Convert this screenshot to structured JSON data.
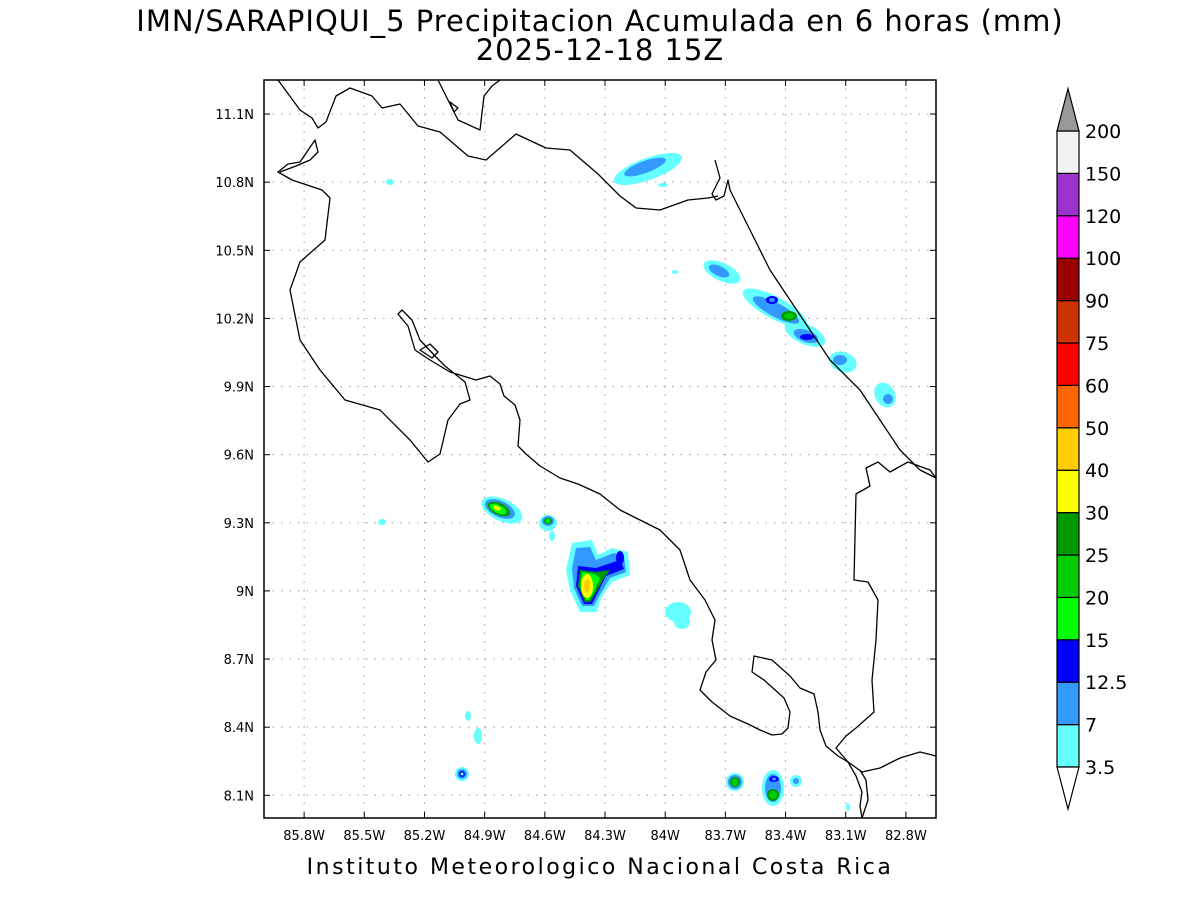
{
  "title": {
    "line1": "IMN/SARAPIQUI_5 Precipitacion Acumulada en 6 horas (mm)",
    "line2": "2025-12-18 15Z"
  },
  "footer": "Instituto Meteorologico Nacional Costa Rica",
  "map": {
    "lon_range": [
      -86.0,
      -82.65
    ],
    "lat_range": [
      8.0,
      11.25
    ],
    "lon_ticks": [
      {
        "value": -85.8,
        "label": "85.8W"
      },
      {
        "value": -85.5,
        "label": "85.5W"
      },
      {
        "value": -85.2,
        "label": "85.2W"
      },
      {
        "value": -84.9,
        "label": "84.9W"
      },
      {
        "value": -84.6,
        "label": "84.6W"
      },
      {
        "value": -84.3,
        "label": "84.3W"
      },
      {
        "value": -84.0,
        "label": "84W"
      },
      {
        "value": -83.7,
        "label": "83.7W"
      },
      {
        "value": -83.4,
        "label": "83.4W"
      },
      {
        "value": -83.1,
        "label": "83.1W"
      },
      {
        "value": -82.8,
        "label": "82.8W"
      }
    ],
    "lat_ticks": [
      {
        "value": 11.1,
        "label": "11.1N"
      },
      {
        "value": 10.8,
        "label": "10.8N"
      },
      {
        "value": 10.5,
        "label": "10.5N"
      },
      {
        "value": 10.2,
        "label": "10.2N"
      },
      {
        "value": 9.9,
        "label": "9.9N"
      },
      {
        "value": 9.6,
        "label": "9.6N"
      },
      {
        "value": 9.3,
        "label": "9.3N"
      },
      {
        "value": 9.0,
        "label": "9N"
      },
      {
        "value": 8.7,
        "label": "8.7N"
      },
      {
        "value": 8.4,
        "label": "8.4N"
      },
      {
        "value": 8.1,
        "label": "8.1N"
      }
    ],
    "grid": true
  },
  "colorbar": {
    "levels": [
      {
        "label": "3.5",
        "color": "#66ffff"
      },
      {
        "label": "7",
        "color": "#3399ff"
      },
      {
        "label": "12.5",
        "color": "#0000ff"
      },
      {
        "label": "15",
        "color": "#00ff00"
      },
      {
        "label": "20",
        "color": "#00cc00"
      },
      {
        "label": "25",
        "color": "#009900"
      },
      {
        "label": "30",
        "color": "#ffff00"
      },
      {
        "label": "40",
        "color": "#ffcc00"
      },
      {
        "label": "50",
        "color": "#ff6600"
      },
      {
        "label": "60",
        "color": "#ff0000"
      },
      {
        "label": "75",
        "color": "#cc3300"
      },
      {
        "label": "90",
        "color": "#990000"
      },
      {
        "label": "100",
        "color": "#ff00ff"
      },
      {
        "label": "120",
        "color": "#9933cc"
      },
      {
        "label": "150",
        "color": "#f2f2f2"
      },
      {
        "label": "200",
        "color": "#999999"
      }
    ]
  },
  "precip_cells": [
    {
      "lon": -83.93,
      "lat": 10.92,
      "rx": 0.12,
      "ry": 0.03,
      "rot": -20,
      "level": 7
    },
    {
      "lon": -84.42,
      "lat": 9.0,
      "rx": 0.06,
      "ry": 0.08,
      "rot": 0,
      "level": 40
    },
    {
      "lon": -84.22,
      "lat": 9.15,
      "rx": 0.03,
      "ry": 0.02,
      "rot": 0,
      "level": 12.5
    },
    {
      "lon": -84.74,
      "lat": 9.37,
      "rx": 0.05,
      "ry": 0.03,
      "rot": 25,
      "level": 30
    },
    {
      "lon": -84.52,
      "lat": 9.32,
      "rx": 0.02,
      "ry": 0.015,
      "rot": 0,
      "level": 20
    },
    {
      "lon": -83.36,
      "lat": 10.32,
      "rx": 0.03,
      "ry": 0.02,
      "rot": 0,
      "level": 12.5
    },
    {
      "lon": -83.28,
      "lat": 10.24,
      "rx": 0.03,
      "ry": 0.02,
      "rot": 0,
      "level": 25
    },
    {
      "lon": -83.19,
      "lat": 10.15,
      "rx": 0.03,
      "ry": 0.015,
      "rot": 0,
      "level": 12.5
    },
    {
      "lon": -85.04,
      "lat": 8.2,
      "rx": 0.015,
      "ry": 0.012,
      "rot": 0,
      "level": 12.5
    },
    {
      "lon": -83.51,
      "lat": 8.17,
      "rx": 0.025,
      "ry": 0.02,
      "rot": 0,
      "level": 20
    },
    {
      "lon": -83.35,
      "lat": 8.19,
      "rx": 0.02,
      "ry": 0.015,
      "rot": 0,
      "level": 12.5
    },
    {
      "lon": -83.34,
      "lat": 8.11,
      "rx": 0.02,
      "ry": 0.02,
      "rot": 0,
      "level": 20
    }
  ]
}
